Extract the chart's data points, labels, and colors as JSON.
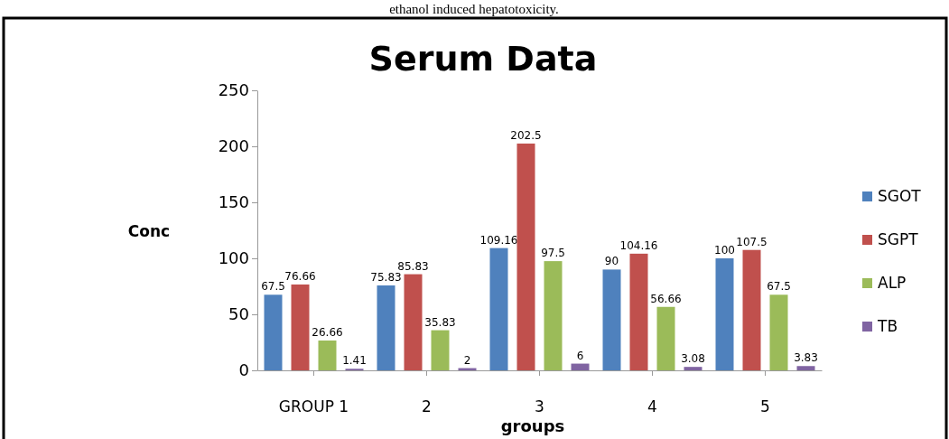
{
  "chart_data": {
    "type": "bar",
    "title": "Serum Data",
    "xlabel": "groups",
    "ylabel": "Conc",
    "annotations": [
      "ethanol induced hepatotoxicity."
    ],
    "categories": [
      "GROUP 1",
      "2",
      "3",
      "4",
      "5"
    ],
    "series": [
      {
        "name": "SGOT",
        "color": "#4f81bd",
        "values": [
          67.5,
          75.83,
          109.16,
          90,
          100
        ]
      },
      {
        "name": "SGPT",
        "color": "#c0504d",
        "values": [
          76.66,
          85.83,
          202.5,
          104.16,
          107.5
        ]
      },
      {
        "name": "ALP",
        "color": "#9bbb59",
        "values": [
          26.66,
          35.83,
          97.5,
          56.66,
          67.5
        ]
      },
      {
        "name": "TB",
        "color": "#8064a2",
        "values": [
          1.41,
          2,
          6,
          3.08,
          3.83
        ]
      }
    ],
    "ylim": [
      0,
      250
    ],
    "yticks": [
      0,
      50,
      100,
      150,
      200,
      250
    ],
    "grid": false,
    "legend": "right",
    "data_labels": true
  }
}
